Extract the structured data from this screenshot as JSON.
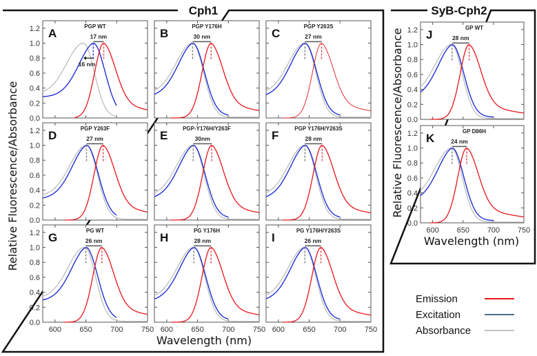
{
  "groups": [
    {
      "title": "Cph1",
      "xlabel": "Wavelength (nm)",
      "ylabel": "Relative Fluorescence/Absorbance"
    },
    {
      "title": "SyB-Cph2",
      "xlabel": "Wavelength (nm)",
      "ylabel": "Relative Fluorescence/Absorbance"
    }
  ],
  "legend": [
    {
      "label": "Emission",
      "color": "#e8141b"
    },
    {
      "label": "Excitation",
      "color": "#4d6e8c"
    },
    {
      "label": "Absorbance",
      "color": "#c4c4c4"
    }
  ],
  "chart_data": {
    "type": "line",
    "xlim": [
      580,
      750
    ],
    "ylim": [
      0,
      1.3
    ],
    "xticks": [
      "600",
      "650",
      "700",
      "750"
    ],
    "yticks": [
      "0.0",
      "0.2",
      "0.4",
      "0.6",
      "0.8",
      "1.0",
      "1.2"
    ],
    "series_colors": {
      "emission": "#e8141b",
      "excitation": "#1f2fd6",
      "absorbance": "#bdbdbd"
    },
    "panels": [
      {
        "letter": "A",
        "title": "PGP WT",
        "shift": "17 nm",
        "shift2": "16 nm",
        "excitation_peak": 662,
        "emission_peak": 679,
        "absorbance_peak": 646
      },
      {
        "letter": "B",
        "title": "PGP Y176H",
        "shift": "30 nm",
        "excitation_peak": 642,
        "emission_peak": 672,
        "absorbance_peak": 642
      },
      {
        "letter": "C",
        "title": "PGP Y263S",
        "shift": "27 nm",
        "excitation_peak": 643,
        "emission_peak": 670,
        "absorbance_peak": 643
      },
      {
        "letter": "D",
        "title": "PGP Y263F",
        "shift": "27 nm",
        "excitation_peak": 651,
        "emission_peak": 678,
        "absorbance_peak": 651
      },
      {
        "letter": "E",
        "title": "PGP-Y176H/Y263F",
        "shift": "30nm",
        "excitation_peak": 643,
        "emission_peak": 673,
        "absorbance_peak": 643
      },
      {
        "letter": "F",
        "title": "PGP Y176H/Y263S",
        "shift": "28 nm",
        "excitation_peak": 643,
        "emission_peak": 671,
        "absorbance_peak": 643
      },
      {
        "letter": "G",
        "title": "PG WT",
        "shift": "26 nm",
        "excitation_peak": 650,
        "emission_peak": 676,
        "absorbance_peak": 648
      },
      {
        "letter": "H",
        "title": "PG Y176H",
        "shift": "28 nm",
        "excitation_peak": 644,
        "emission_peak": 672,
        "absorbance_peak": 644
      },
      {
        "letter": "I",
        "title": "PG Y176H/Y263S",
        "shift": "26 nm",
        "excitation_peak": 643,
        "emission_peak": 669,
        "absorbance_peak": 643
      },
      {
        "letter": "J",
        "title": "GP WT",
        "shift": "28 nm",
        "excitation_peak": 632,
        "emission_peak": 660,
        "absorbance_peak": 631
      },
      {
        "letter": "K",
        "title": "GP D86H",
        "shift": "24 nm",
        "excitation_peak": 632,
        "emission_peak": 656,
        "absorbance_peak": 631
      }
    ]
  }
}
